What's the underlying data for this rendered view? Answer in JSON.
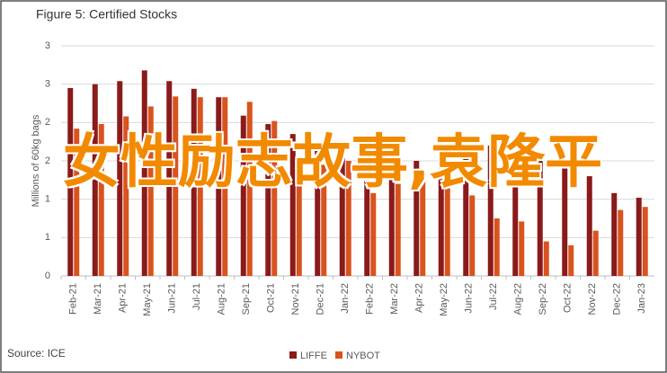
{
  "chart_data": {
    "type": "bar",
    "title": "Figure 5: Certified Stocks",
    "y_label": "Millions of 60kg bags",
    "source": "Source: ICE",
    "annotation": "女性励志故事,袁隆平",
    "categories": [
      "Feb-21",
      "Mar-21",
      "Apr-21",
      "May-21",
      "Jun-21",
      "Jul-21",
      "Aug-21",
      "Sep-21",
      "Oct-21",
      "Nov-21",
      "Dec-21",
      "Jan-22",
      "Feb-22",
      "Mar-22",
      "Apr-22",
      "May-22",
      "Jun-22",
      "Jul-22",
      "Aug-22",
      "Sep-22",
      "Oct-22",
      "Nov-22",
      "Dec-22",
      "Jan-23"
    ],
    "series": [
      {
        "name": "LIFFE",
        "color": "#8b1a1a",
        "values": [
          2.45,
          2.5,
          2.54,
          2.68,
          2.54,
          2.44,
          2.33,
          2.09,
          1.98,
          1.85,
          1.7,
          1.7,
          1.53,
          1.5,
          1.5,
          1.72,
          1.76,
          1.7,
          1.4,
          1.5,
          1.4,
          1.3,
          1.08,
          1.02
        ]
      },
      {
        "name": "NYBOT",
        "color": "#d9531e",
        "values": [
          1.92,
          1.98,
          2.08,
          2.21,
          2.34,
          2.33,
          2.33,
          2.27,
          2.02,
          1.5,
          1.45,
          1.5,
          1.08,
          1.2,
          1.3,
          1.3,
          1.05,
          0.75,
          0.71,
          0.45,
          0.4,
          0.59,
          0.86,
          0.9
        ]
      }
    ],
    "ylim": [
      0,
      3
    ],
    "yticks": [
      0,
      {
        "value": 0.5,
        "label": "1"
      },
      1,
      {
        "value": 1.5,
        "label": "2"
      },
      2,
      {
        "value": 2.5,
        "label": "3"
      },
      3
    ],
    "grid": true,
    "legend": "bottom"
  }
}
